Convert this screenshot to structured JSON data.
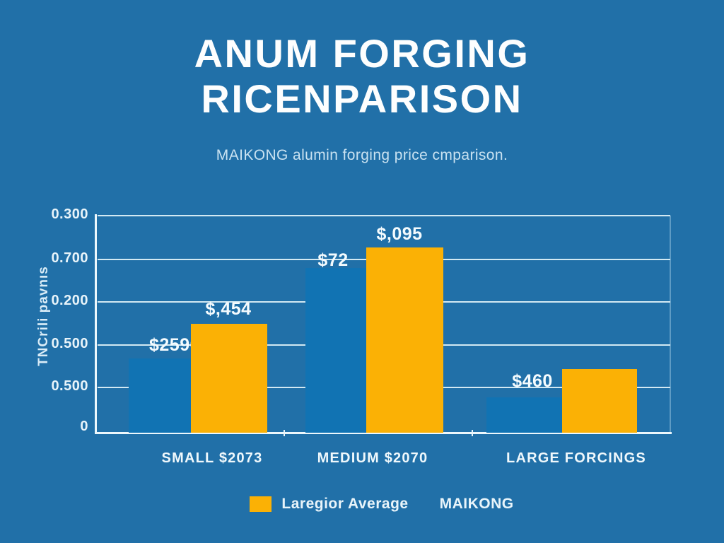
{
  "page": {
    "background_color": "#2170A8",
    "title_line1": "ANUM FORGING",
    "title_line2": "RICENPARISON",
    "subtitle": "MAIKONG alumin forging price cmparison."
  },
  "chart_data": {
    "type": "bar",
    "title": "ANUM FORGING RICENPARISON",
    "subtitle": "MAIKONG alumin forging price cmparison.",
    "xlabel": "",
    "ylabel": "TNCrili pavnıs",
    "grid": true,
    "legend_position": "bottom",
    "y_axis_ticks_top_to_bottom": [
      "0.300",
      "0.700",
      "0.200",
      "0.500",
      "0.500",
      "0"
    ],
    "categories": [
      "SMALL $2073",
      "MEDIUM $2070",
      "LARGE FORCINGS"
    ],
    "series": [
      {
        "name": "MAIKONG",
        "color": "#1173B3",
        "value_labels": [
          "$2590",
          "$72",
          "$460"
        ],
        "relative_heights": [
          0.342,
          0.759,
          0.163
        ]
      },
      {
        "name": "Laregior Average",
        "color": "#FBB105",
        "value_labels": [
          "$,454",
          "$,095",
          ""
        ],
        "relative_heights": [
          0.502,
          0.853,
          0.293
        ]
      }
    ]
  },
  "legend": {
    "swatch_color": "#FBB105",
    "item1": "Laregior Average",
    "item2": "MAIKONG"
  }
}
